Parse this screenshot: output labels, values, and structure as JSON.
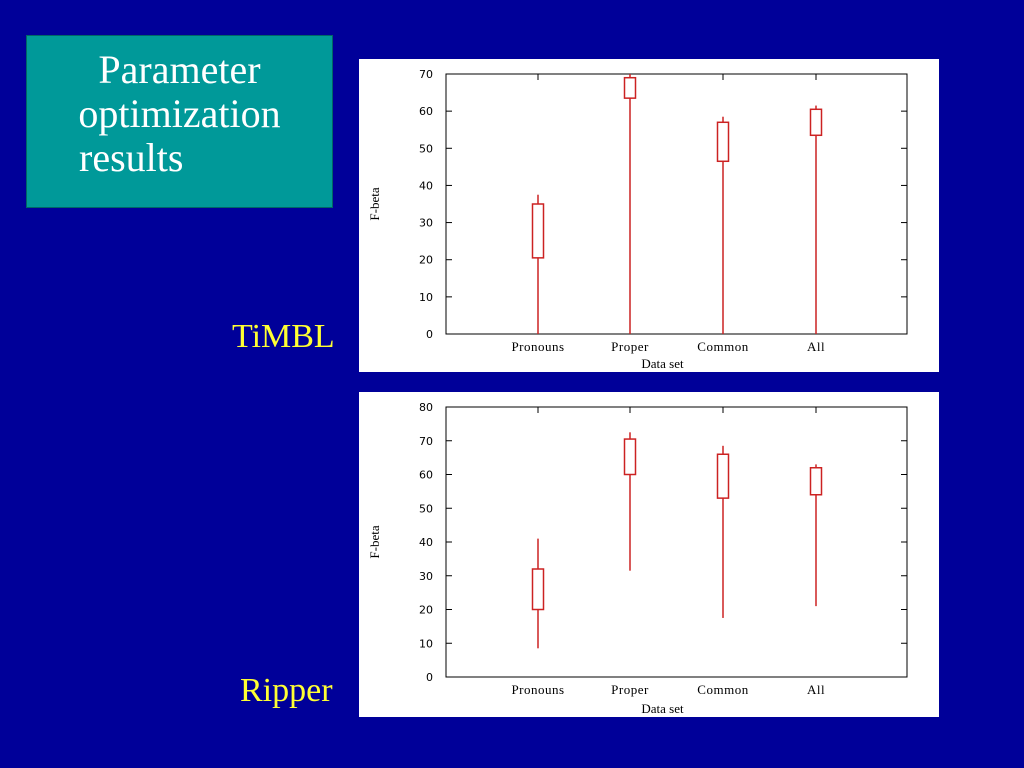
{
  "slide": {
    "title_line1": "Parameter",
    "title_line2": "optimization",
    "title_line3": "results",
    "label_top": "TiMBL",
    "label_bottom": "Ripper",
    "colors": {
      "background": "#000099",
      "title_box": "#009999",
      "label": "#ffff33",
      "box_stroke": "#cc2222"
    }
  },
  "chart_data": [
    {
      "type": "box",
      "name": "TiMBL",
      "categories": [
        "Pronouns",
        "Proper",
        "Common",
        "All"
      ],
      "xlabel": "Data set",
      "ylabel": "F-beta",
      "ylim": [
        0,
        70
      ],
      "yticks": [
        0,
        10,
        20,
        30,
        40,
        50,
        60,
        70
      ],
      "series": [
        {
          "min": 0,
          "q1": 20.5,
          "q3": 35,
          "max": 37.5
        },
        {
          "min": 0,
          "q1": 63.5,
          "q3": 69,
          "max": 70
        },
        {
          "min": 0,
          "q1": 46.5,
          "q3": 57,
          "max": 58.5
        },
        {
          "min": 0,
          "q1": 53.5,
          "q3": 60.5,
          "max": 61.5
        }
      ]
    },
    {
      "type": "box",
      "name": "Ripper",
      "categories": [
        "Pronouns",
        "Proper",
        "Common",
        "All"
      ],
      "xlabel": "Data set",
      "ylabel": "F-beta",
      "ylim": [
        0,
        80
      ],
      "yticks": [
        0,
        10,
        20,
        30,
        40,
        50,
        60,
        70,
        80
      ],
      "series": [
        {
          "min": 8.5,
          "q1": 20,
          "q3": 32,
          "max": 41
        },
        {
          "min": 31.5,
          "q1": 60,
          "q3": 70.5,
          "max": 72.5
        },
        {
          "min": 17.5,
          "q1": 53,
          "q3": 66,
          "max": 68.5
        },
        {
          "min": 21,
          "q1": 54,
          "q3": 62,
          "max": 63
        }
      ]
    }
  ]
}
